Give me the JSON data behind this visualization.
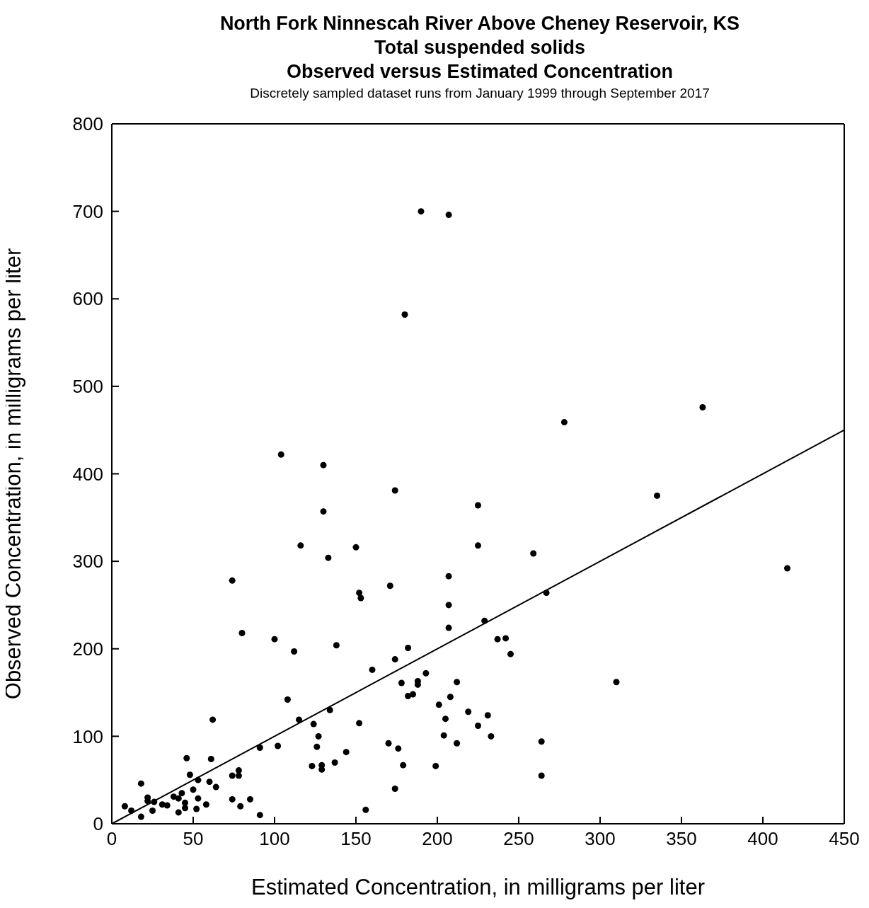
{
  "chart_data": {
    "type": "scatter",
    "title": "North Fork Ninnescah River Above Cheney Reservoir, KS\nTotal suspended solids\nObserved versus Estimated Concentration",
    "subtitle": "Discretely sampled dataset runs from January 1999 through September 2017",
    "xlabel": "Estimated Concentration, in milligrams per liter",
    "ylabel": "Observed Concentration, in milligrams per liter",
    "xlim": [
      0,
      450
    ],
    "xticks": [
      0,
      50,
      100,
      150,
      200,
      250,
      300,
      350,
      400,
      450
    ],
    "ylim": [
      0,
      800
    ],
    "yticks": [
      0,
      100,
      200,
      300,
      400,
      500,
      600,
      700,
      800
    ],
    "series": [
      {
        "color": "#000000",
        "marker": "circle",
        "x": [
          8,
          12,
          18,
          18,
          22,
          22,
          26,
          25,
          31,
          34,
          38,
          41,
          43,
          41,
          45,
          45,
          46,
          48,
          50,
          53,
          52,
          53,
          58,
          60,
          61,
          64,
          62,
          74,
          78,
          78,
          74,
          79,
          85,
          91,
          91,
          102,
          104,
          130,
          130,
          174,
          116,
          150,
          133,
          74,
          152,
          153,
          171,
          80,
          100,
          112,
          138,
          160,
          174,
          108,
          134,
          259,
          207,
          207,
          207,
          267,
          229,
          237,
          242,
          245,
          182,
          193,
          212,
          178,
          188,
          188,
          182,
          185,
          208,
          201,
          115,
          124,
          152,
          205,
          219,
          231,
          225,
          233,
          204,
          212,
          264,
          264,
          127,
          126,
          170,
          176,
          144,
          137,
          123,
          129,
          129,
          179,
          199,
          174,
          156,
          190,
          207,
          180,
          278,
          363,
          335,
          225,
          225,
          415,
          310
        ],
        "values": [
          20,
          15,
          8,
          46,
          30,
          26,
          25,
          15,
          22,
          21,
          31,
          29,
          35,
          13,
          24,
          18,
          75,
          56,
          39,
          29,
          17,
          50,
          22,
          48,
          74,
          42,
          119,
          55,
          61,
          55,
          28,
          20,
          28,
          10,
          87,
          89,
          422,
          410,
          357,
          381,
          318,
          316,
          304,
          278,
          264,
          258,
          272,
          218,
          211,
          197,
          204,
          176,
          188,
          142,
          130,
          309,
          283,
          250,
          224,
          264,
          232,
          211,
          212,
          194,
          201,
          172,
          162,
          161,
          163,
          159,
          146,
          148,
          145,
          136,
          119,
          114,
          115,
          120,
          128,
          124,
          112,
          100,
          101,
          92,
          94,
          55,
          100,
          88,
          92,
          86,
          82,
          70,
          66,
          67,
          62,
          67,
          66,
          40,
          16,
          700,
          696,
          582,
          459,
          476,
          375,
          364,
          318,
          292,
          162
        ]
      },
      {
        "type": "line",
        "color": "#000000",
        "marker": "none",
        "x": [
          0,
          450
        ],
        "values": [
          0,
          450
        ]
      }
    ]
  }
}
